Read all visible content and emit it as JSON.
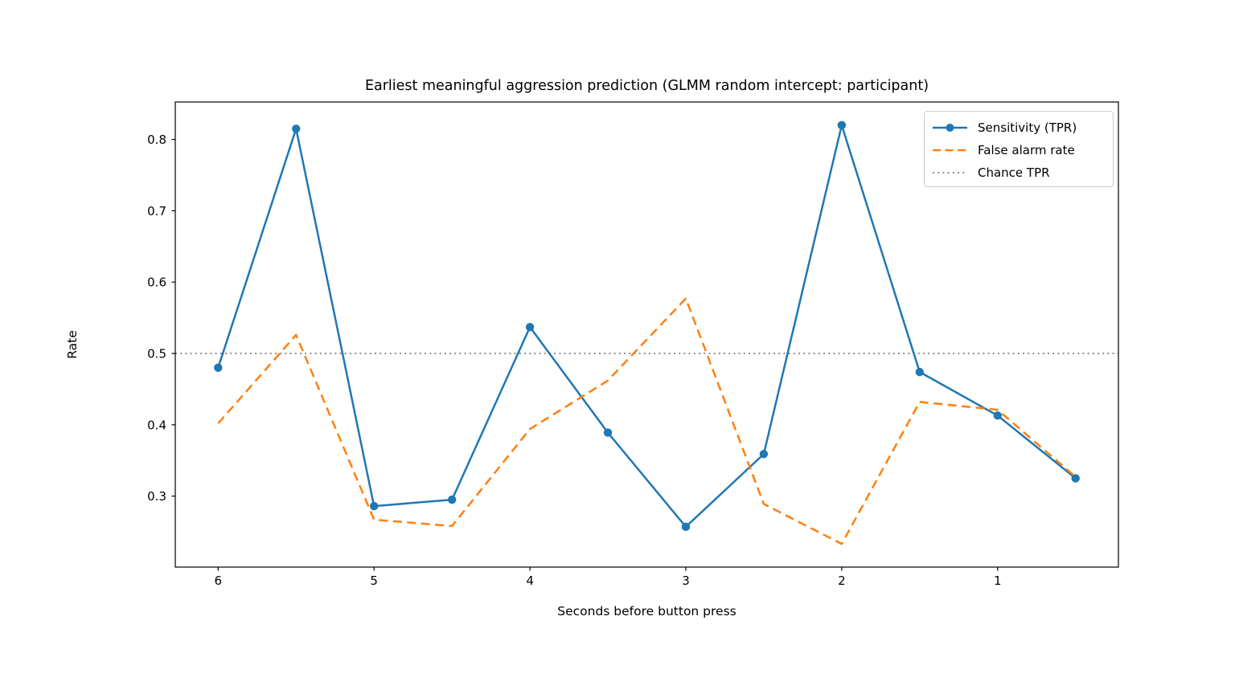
{
  "figure": {
    "background": "#ffffff",
    "text_color": "#000000"
  },
  "chart_data": {
    "type": "line",
    "title": "Earliest meaningful aggression prediction (GLMM random intercept: participant)",
    "xlabel": "Seconds before button press",
    "ylabel": "Rate",
    "x": [
      6,
      5.5,
      5,
      4.5,
      4,
      3.5,
      3,
      2.5,
      2,
      1.5,
      1,
      0.5
    ],
    "series": [
      {
        "name": "Sensitivity (TPR)",
        "color": "#1f77b4",
        "line_style": "solid",
        "marker": "circle",
        "values": [
          0.48,
          0.815,
          0.286,
          0.295,
          0.537,
          0.389,
          0.257,
          0.359,
          0.82,
          0.474,
          0.413,
          0.325
        ]
      },
      {
        "name": "False alarm rate",
        "color": "#ff7f0e",
        "line_style": "dashed",
        "marker": "none",
        "values": [
          0.402,
          0.526,
          0.267,
          0.258,
          0.394,
          0.462,
          0.577,
          0.289,
          0.233,
          0.432,
          0.421,
          0.327
        ]
      },
      {
        "name": "Chance TPR",
        "color": "#7f7f7f",
        "line_style": "dotted",
        "marker": "none",
        "constant": 0.5
      }
    ],
    "x_axis_inverted": true,
    "xlim": [
      6.275,
      0.225
    ],
    "ylim": [
      0.2005,
      0.8525
    ],
    "xticks": [
      6,
      5,
      4,
      3,
      2,
      1
    ],
    "yticks": [
      0.3,
      0.4,
      0.5,
      0.6,
      0.7,
      0.8
    ],
    "grid": false,
    "legend_position": "upper right"
  }
}
